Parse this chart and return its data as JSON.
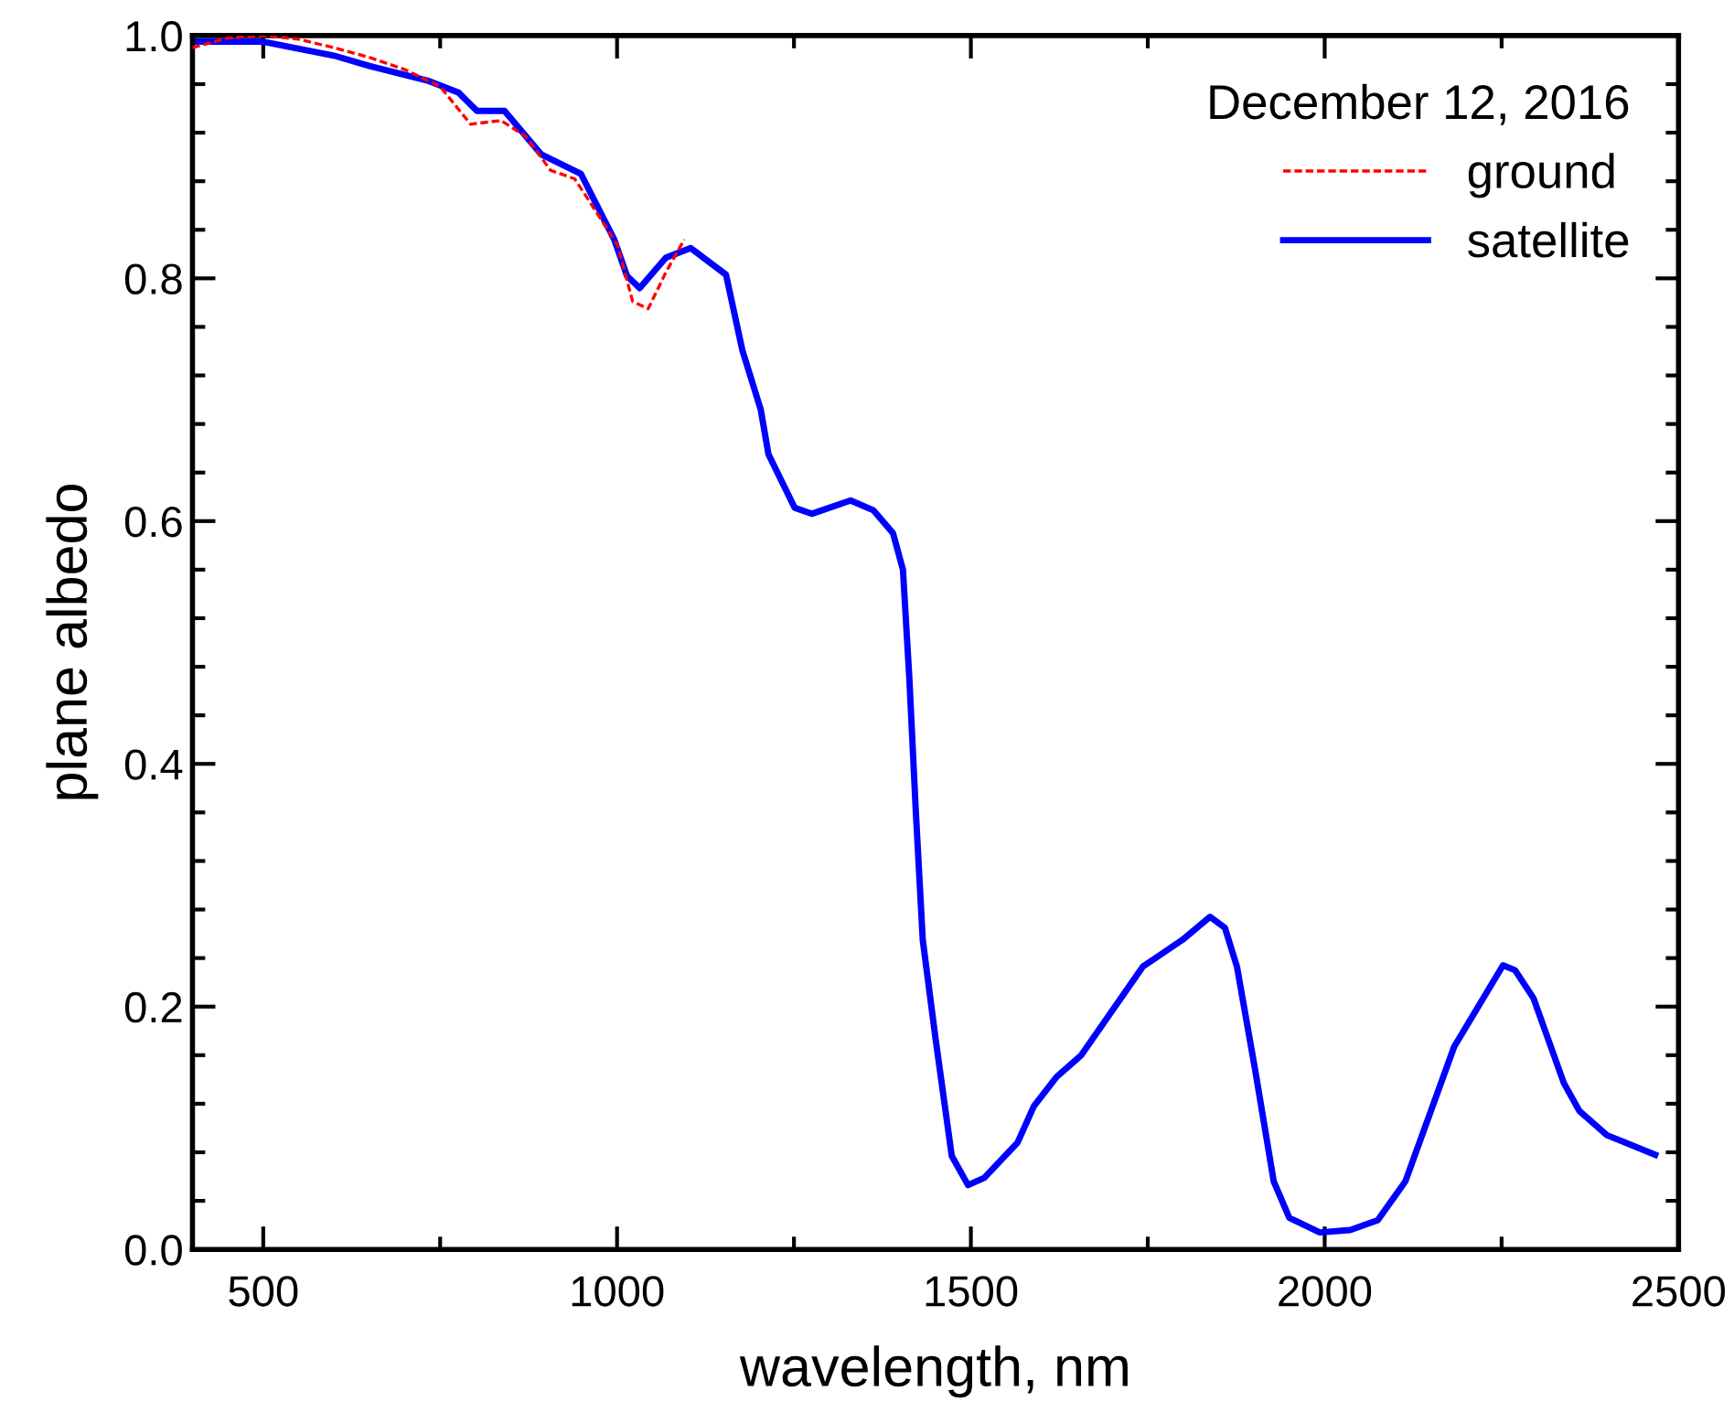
{
  "chart_data": {
    "type": "line",
    "xlabel": "wavelength, nm",
    "ylabel": "plane albedo",
    "legend_title": "December 12, 2016",
    "legend": "top right",
    "grid": false,
    "marker": "none",
    "xlim": [
      400,
      2500
    ],
    "xticks": [
      500,
      1000,
      1500,
      2000,
      2500
    ],
    "ylim": [
      0,
      1
    ],
    "yticks": [
      {
        "value": 0,
        "label": "0.0"
      },
      {
        "value": 0.2,
        "label": "0.2"
      },
      {
        "value": 0.4,
        "label": "0.4"
      },
      {
        "value": 0.6,
        "label": "0.6"
      },
      {
        "value": 0.8,
        "label": "0.8"
      },
      {
        "value": 1,
        "label": "1.0"
      }
    ],
    "series": [
      {
        "name": "ground",
        "color": "#ff0000",
        "line_style": "dashed",
        "x": [
          400,
          450,
          500,
          550,
          600,
          650,
          700,
          750,
          793,
          836,
          871,
          906,
          940,
          957,
          1001,
          1022,
          1044,
          1069,
          1095
        ],
        "values": [
          0.99,
          0.998,
          1.0,
          0.997,
          0.99,
          0.982,
          0.972,
          0.958,
          0.927,
          0.93,
          0.917,
          0.889,
          0.882,
          0.867,
          0.827,
          0.781,
          0.775,
          0.805,
          0.832
        ]
      },
      {
        "name": "satellite",
        "color": "#0000ff",
        "line_style": "solid",
        "x": [
          400,
          500,
          603,
          650,
          732,
          776,
          802,
          841,
          893,
          949,
          996,
          1014,
          1032,
          1069,
          1104,
          1154,
          1177,
          1203,
          1214,
          1251,
          1275,
          1330,
          1362,
          1390,
          1404,
          1413,
          1422,
          1432,
          1450,
          1473,
          1496,
          1519,
          1566,
          1589,
          1621,
          1656,
          1743,
          1799,
          1838,
          1859,
          1876,
          1902,
          1928,
          1950,
          1993,
          2036,
          2075,
          2114,
          2183,
          2252,
          2269,
          2295,
          2338,
          2360,
          2399,
          2467
        ],
        "values": [
          0.995,
          0.995,
          0.983,
          0.975,
          0.963,
          0.953,
          0.938,
          0.938,
          0.902,
          0.886,
          0.832,
          0.802,
          0.792,
          0.817,
          0.825,
          0.803,
          0.741,
          0.692,
          0.655,
          0.611,
          0.606,
          0.617,
          0.609,
          0.59,
          0.56,
          0.471,
          0.363,
          0.255,
          0.174,
          0.077,
          0.053,
          0.059,
          0.088,
          0.118,
          0.142,
          0.16,
          0.233,
          0.255,
          0.274,
          0.265,
          0.233,
          0.147,
          0.056,
          0.026,
          0.014,
          0.016,
          0.024,
          0.056,
          0.167,
          0.234,
          0.23,
          0.207,
          0.137,
          0.114,
          0.094,
          0.078
        ]
      }
    ]
  }
}
